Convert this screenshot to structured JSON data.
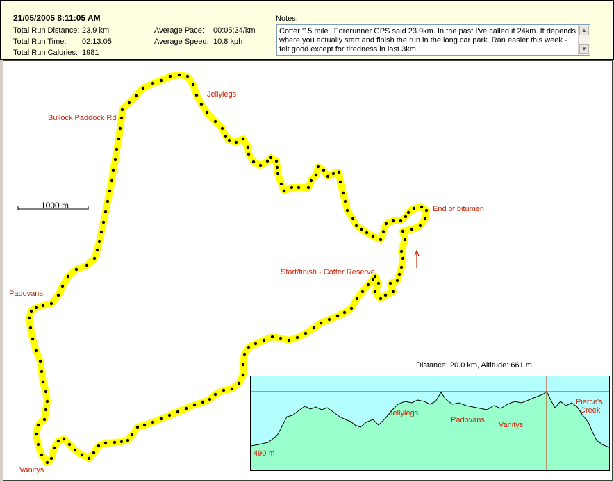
{
  "header": {
    "datetime": "21/05/2005  8:11:05 AM",
    "stats": [
      {
        "label": "Total Run Distance:",
        "value": "23.9 km"
      },
      {
        "label": "Total Run Time:",
        "value": "02:13:05"
      },
      {
        "label": "Total Run Calories:",
        "value": "1981"
      }
    ],
    "pace": [
      {
        "label": "Average Pace:",
        "value": "00:05:34/km"
      },
      {
        "label": "Average Speed:",
        "value": "10.8 kph"
      }
    ],
    "notes_label": "Notes:",
    "notes_text": "Cotter '15 mile'. Forerunner GPS said 23.9km. In the past I've called it 24km. It depends where you actually start and finish the run in the long car park. Ran easier this week - felt good except for tiredness in last 3km."
  },
  "map": {
    "scale_label": "1000 m",
    "labels": {
      "jellylegs": "Jellylegs",
      "bullock": "Bullock Paddock Rd",
      "end_bitumen": "End of bitumen",
      "start_finish": "Start/finish - Cotter Reserve",
      "padovans": "Padovans",
      "vanitys": "Vanitys"
    },
    "route_color": "#ffff00",
    "marker_color": "#cc2200"
  },
  "profile": {
    "readout": "Distance: 20.0 km, Altitude: 661 m",
    "min_label": "490 m",
    "labels": {
      "jellylegs": "Jellylegs",
      "padovans": "Padovans",
      "vanitys": "Vanitys",
      "pierces_1": "Pierce's",
      "pierces_2": "Creek"
    },
    "sky_color": "#b3ffff",
    "fill_color": "#99ffcc"
  }
}
